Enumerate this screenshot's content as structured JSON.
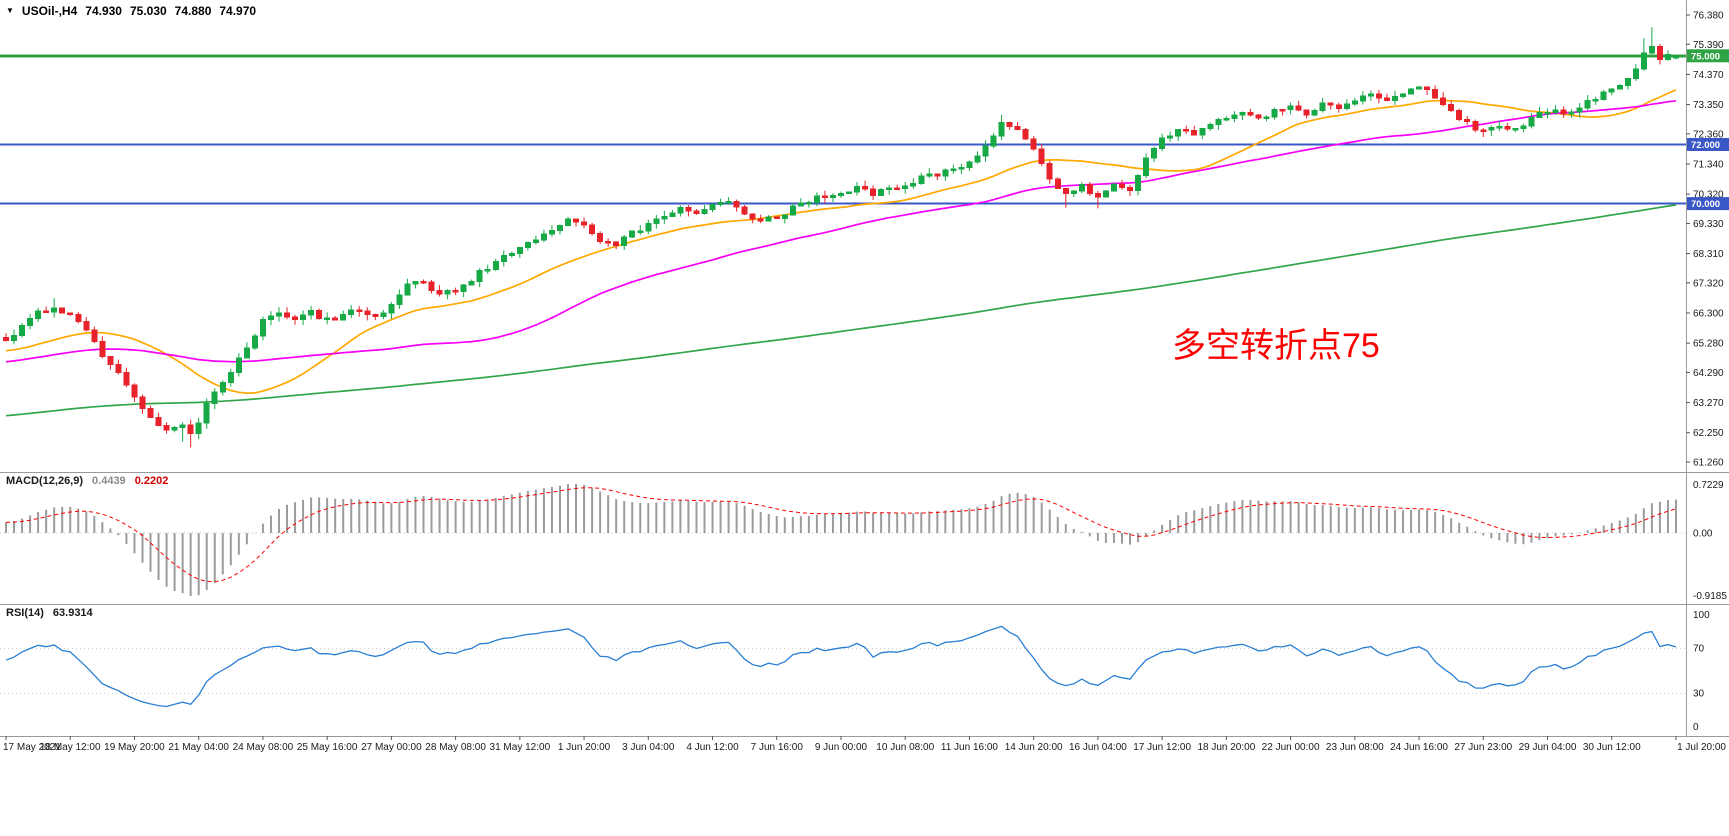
{
  "header": {
    "symbol": "USOil-,H4",
    "open": "74.930",
    "high": "75.030",
    "low": "74.880",
    "close": "74.970"
  },
  "annotation": {
    "text": "多空转折点75",
    "color": "#ff0000"
  },
  "panels": {
    "macd": {
      "label": "MACD(12,26,9)",
      "value_main": "0.4439",
      "value_signal": "0.2202",
      "axis_labels": [
        "0.7229",
        "0.00",
        "-0.9185"
      ]
    },
    "rsi": {
      "label": "RSI(14)",
      "value": "63.9314",
      "axis_labels": [
        "100",
        "70",
        "30",
        "0"
      ]
    }
  },
  "chart_data": {
    "type": "candlestick",
    "title": "USOil-,H4",
    "price_axis_labels": [
      "76.380",
      "75.390",
      "74.370",
      "73.350",
      "72.360",
      "71.340",
      "70.320",
      "69.330",
      "68.310",
      "67.320",
      "66.300",
      "65.280",
      "64.290",
      "63.270",
      "62.250",
      "61.260"
    ],
    "time_labels": [
      "17 May 2021",
      "18 May 12:00",
      "19 May 20:00",
      "21 May 04:00",
      "24 May 08:00",
      "25 May 16:00",
      "27 May 00:00",
      "28 May 08:00",
      "31 May 12:00",
      "1 Jun 20:00",
      "3 Jun 04:00",
      "4 Jun 12:00",
      "7 Jun 16:00",
      "9 Jun 00:00",
      "10 Jun 08:00",
      "11 Jun 16:00",
      "14 Jun 20:00",
      "16 Jun 04:00",
      "17 Jun 12:00",
      "18 Jun 20:00",
      "22 Jun 00:00",
      "23 Jun 08:00",
      "24 Jun 16:00",
      "27 Jun 23:00",
      "29 Jun 04:00",
      "30 Jun 12:00",
      "1 Jul 20:00"
    ],
    "candles_per_time_label": 8,
    "num_candles": 209,
    "y_range": [
      60.9,
      76.88
    ],
    "ohlc_current": {
      "open": 74.93,
      "high": 75.03,
      "low": 74.88,
      "close": 74.97
    },
    "close_waypoints": [
      [
        0,
        65.35
      ],
      [
        2,
        65.9
      ],
      [
        4,
        66.3
      ],
      [
        6,
        66.5
      ],
      [
        8,
        66.25
      ],
      [
        10,
        65.7
      ],
      [
        12,
        64.9
      ],
      [
        14,
        64.2
      ],
      [
        16,
        63.5
      ],
      [
        18,
        62.7
      ],
      [
        20,
        62.3
      ],
      [
        22,
        62.5
      ],
      [
        23,
        62.15
      ],
      [
        24,
        62.6
      ],
      [
        26,
        63.7
      ],
      [
        28,
        64.3
      ],
      [
        30,
        65.1
      ],
      [
        32,
        66.05
      ],
      [
        34,
        66.3
      ],
      [
        36,
        66.1
      ],
      [
        38,
        66.35
      ],
      [
        40,
        66.05
      ],
      [
        42,
        66.2
      ],
      [
        44,
        66.45
      ],
      [
        46,
        66.2
      ],
      [
        48,
        66.55
      ],
      [
        50,
        67.2
      ],
      [
        52,
        67.35
      ],
      [
        54,
        66.9
      ],
      [
        56,
        67.05
      ],
      [
        58,
        67.45
      ],
      [
        60,
        67.85
      ],
      [
        62,
        68.2
      ],
      [
        64,
        68.5
      ],
      [
        66,
        68.85
      ],
      [
        68,
        69.15
      ],
      [
        70,
        69.45
      ],
      [
        72,
        69.35
      ],
      [
        74,
        68.8
      ],
      [
        76,
        68.65
      ],
      [
        78,
        69.0
      ],
      [
        80,
        69.3
      ],
      [
        82,
        69.6
      ],
      [
        84,
        69.9
      ],
      [
        86,
        69.75
      ],
      [
        88,
        69.9
      ],
      [
        90,
        70.05
      ],
      [
        92,
        69.7
      ],
      [
        94,
        69.4
      ],
      [
        96,
        69.55
      ],
      [
        98,
        69.85
      ],
      [
        100,
        70.1
      ],
      [
        102,
        70.25
      ],
      [
        104,
        70.35
      ],
      [
        106,
        70.5
      ],
      [
        108,
        70.35
      ],
      [
        110,
        70.55
      ],
      [
        112,
        70.65
      ],
      [
        114,
        70.85
      ],
      [
        116,
        71.0
      ],
      [
        118,
        71.1
      ],
      [
        120,
        71.35
      ],
      [
        122,
        71.95
      ],
      [
        124,
        72.7
      ],
      [
        126,
        72.45
      ],
      [
        128,
        71.9
      ],
      [
        130,
        70.9
      ],
      [
        132,
        70.3
      ],
      [
        134,
        70.55
      ],
      [
        136,
        70.25
      ],
      [
        138,
        70.6
      ],
      [
        140,
        70.45
      ],
      [
        142,
        71.5
      ],
      [
        144,
        72.25
      ],
      [
        146,
        72.45
      ],
      [
        148,
        72.35
      ],
      [
        150,
        72.7
      ],
      [
        152,
        72.95
      ],
      [
        154,
        73.15
      ],
      [
        156,
        72.9
      ],
      [
        158,
        73.1
      ],
      [
        160,
        73.3
      ],
      [
        162,
        73.05
      ],
      [
        164,
        73.35
      ],
      [
        166,
        73.15
      ],
      [
        168,
        73.5
      ],
      [
        170,
        73.7
      ],
      [
        172,
        73.45
      ],
      [
        174,
        73.8
      ],
      [
        176,
        74.0
      ],
      [
        178,
        73.65
      ],
      [
        180,
        73.15
      ],
      [
        182,
        72.7
      ],
      [
        184,
        72.45
      ],
      [
        186,
        72.6
      ],
      [
        188,
        72.5
      ],
      [
        190,
        72.85
      ],
      [
        192,
        73.15
      ],
      [
        194,
        73.0
      ],
      [
        196,
        73.3
      ],
      [
        198,
        73.55
      ],
      [
        200,
        73.85
      ],
      [
        202,
        74.15
      ],
      [
        203,
        74.5
      ],
      [
        204,
        75.05
      ],
      [
        205,
        75.35
      ],
      [
        206,
        74.8
      ],
      [
        207,
        75.1
      ],
      [
        208,
        74.97
      ]
    ],
    "wick_overrides": [
      {
        "i": 6,
        "high": 66.8
      },
      {
        "i": 22,
        "low": 61.95
      },
      {
        "i": 23,
        "low": 61.75
      },
      {
        "i": 124,
        "high": 73.0
      },
      {
        "i": 132,
        "low": 69.86
      },
      {
        "i": 136,
        "low": 69.84
      },
      {
        "i": 184,
        "low": 72.25
      },
      {
        "i": 204,
        "high": 75.6
      },
      {
        "i": 205,
        "high": 75.97
      }
    ],
    "pre_trend": {
      "length": 200,
      "start": 60.4,
      "end": 65.2,
      "noise": 0.5
    },
    "horizontal_lines": [
      {
        "price": 75.0,
        "label": "75.000",
        "color": "#2fa344",
        "width": 3
      },
      {
        "price": 72.0,
        "label": "72.000",
        "color": "#3a57c8",
        "width": 2
      },
      {
        "price": 70.0,
        "label": "70.000",
        "color": "#3a57c8",
        "width": 2
      }
    ],
    "moving_averages": [
      {
        "name": "fast-ma",
        "period": 20,
        "color": "#ffa800"
      },
      {
        "name": "mid-ma",
        "period": 50,
        "color": "#f800f8"
      },
      {
        "name": "slow-ma",
        "period": 200,
        "color": "#33a64c"
      }
    ],
    "macd": {
      "fast": 12,
      "slow": 26,
      "signal": 9,
      "histogram_color": "#9b9b9b",
      "signal_color": "#ff0000",
      "axis_range": [
        -0.9185,
        0.7229
      ]
    },
    "rsi": {
      "period": 14,
      "color": "#2a7fd4",
      "levels": [
        30,
        70
      ],
      "axis_range": [
        0,
        100
      ]
    },
    "candle_up_color": "#16a946",
    "candle_down_color": "#e8222a"
  }
}
